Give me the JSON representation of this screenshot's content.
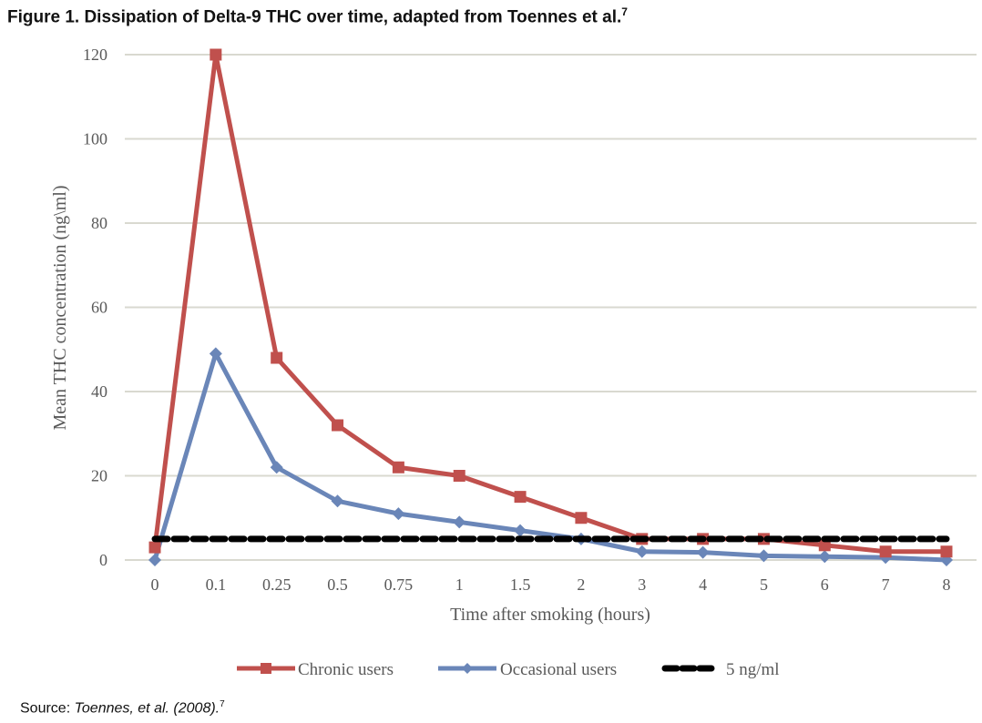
{
  "figure": {
    "title": "Figure 1. Dissipation of Delta-9 THC over time, adapted from Toennes et al.",
    "title_superscript": "7",
    "source_prefix": "Source: ",
    "source_citation": "Toennes, et al. (2008).",
    "source_superscript": "7"
  },
  "chart_data": {
    "type": "line",
    "title": "Figure 1. Dissipation of Delta-9 THC over time, adapted from Toennes et al.",
    "xlabel": "Time after smoking (hours)",
    "ylabel": "Mean THC concentration (ng\\ml)",
    "categories": [
      "0",
      "0.1",
      "0.25",
      "0.5",
      "0.75",
      "1",
      "1.5",
      "2",
      "3",
      "4",
      "5",
      "6",
      "7",
      "8"
    ],
    "ylim": [
      0,
      120
    ],
    "yticks": [
      0,
      20,
      40,
      60,
      80,
      100,
      120
    ],
    "grid": true,
    "legend_position": "bottom",
    "series": [
      {
        "name": "Chronic users",
        "color": "#c0504d",
        "marker": "square",
        "line_style": "solid",
        "values": [
          3,
          120,
          48,
          32,
          22,
          20,
          15,
          10,
          5,
          5,
          5,
          3.5,
          2,
          2
        ]
      },
      {
        "name": "Occasional users",
        "color": "#6a86b8",
        "marker": "diamond",
        "line_style": "solid",
        "values": [
          0,
          49,
          22,
          14,
          11,
          9,
          7,
          5,
          2,
          1.8,
          1,
          0.8,
          0.6,
          0
        ]
      },
      {
        "name": "5 ng/ml",
        "color": "#000000",
        "marker": "none",
        "line_style": "dashed",
        "values": [
          5,
          5,
          5,
          5,
          5,
          5,
          5,
          5,
          5,
          5,
          5,
          5,
          5,
          5
        ]
      }
    ]
  }
}
